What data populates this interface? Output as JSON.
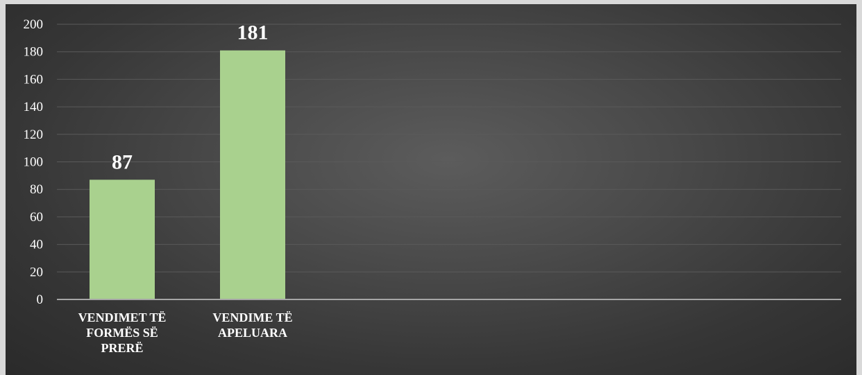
{
  "chart_data": {
    "type": "bar",
    "categories": [
      "VENDIMET TË FORMËS SË PRERË",
      "VENDIME TË APELUARA"
    ],
    "category_lines": [
      [
        "VENDIMET TË",
        "FORMËS SË",
        "PRERË"
      ],
      [
        "VENDIME TË",
        "APELUARA"
      ]
    ],
    "values": [
      87,
      181
    ],
    "data_labels": [
      "87",
      "181"
    ],
    "title": "",
    "xlabel": "",
    "ylabel": "",
    "ylim": [
      0,
      200
    ],
    "yticks": [
      0,
      20,
      40,
      60,
      80,
      100,
      120,
      140,
      160,
      180,
      200
    ],
    "ytick_labels": [
      "0",
      "20",
      "40",
      "60",
      "80",
      "100",
      "120",
      "140",
      "160",
      "180",
      "200"
    ],
    "grid": true,
    "legend": "none",
    "colors": {
      "bar": "#a9d18e",
      "background": "#3f3f3f",
      "gridline": "#5a5a5a",
      "axis": "#a6a6a6",
      "text": "#ffffff",
      "border": "#d9d9d9"
    }
  }
}
